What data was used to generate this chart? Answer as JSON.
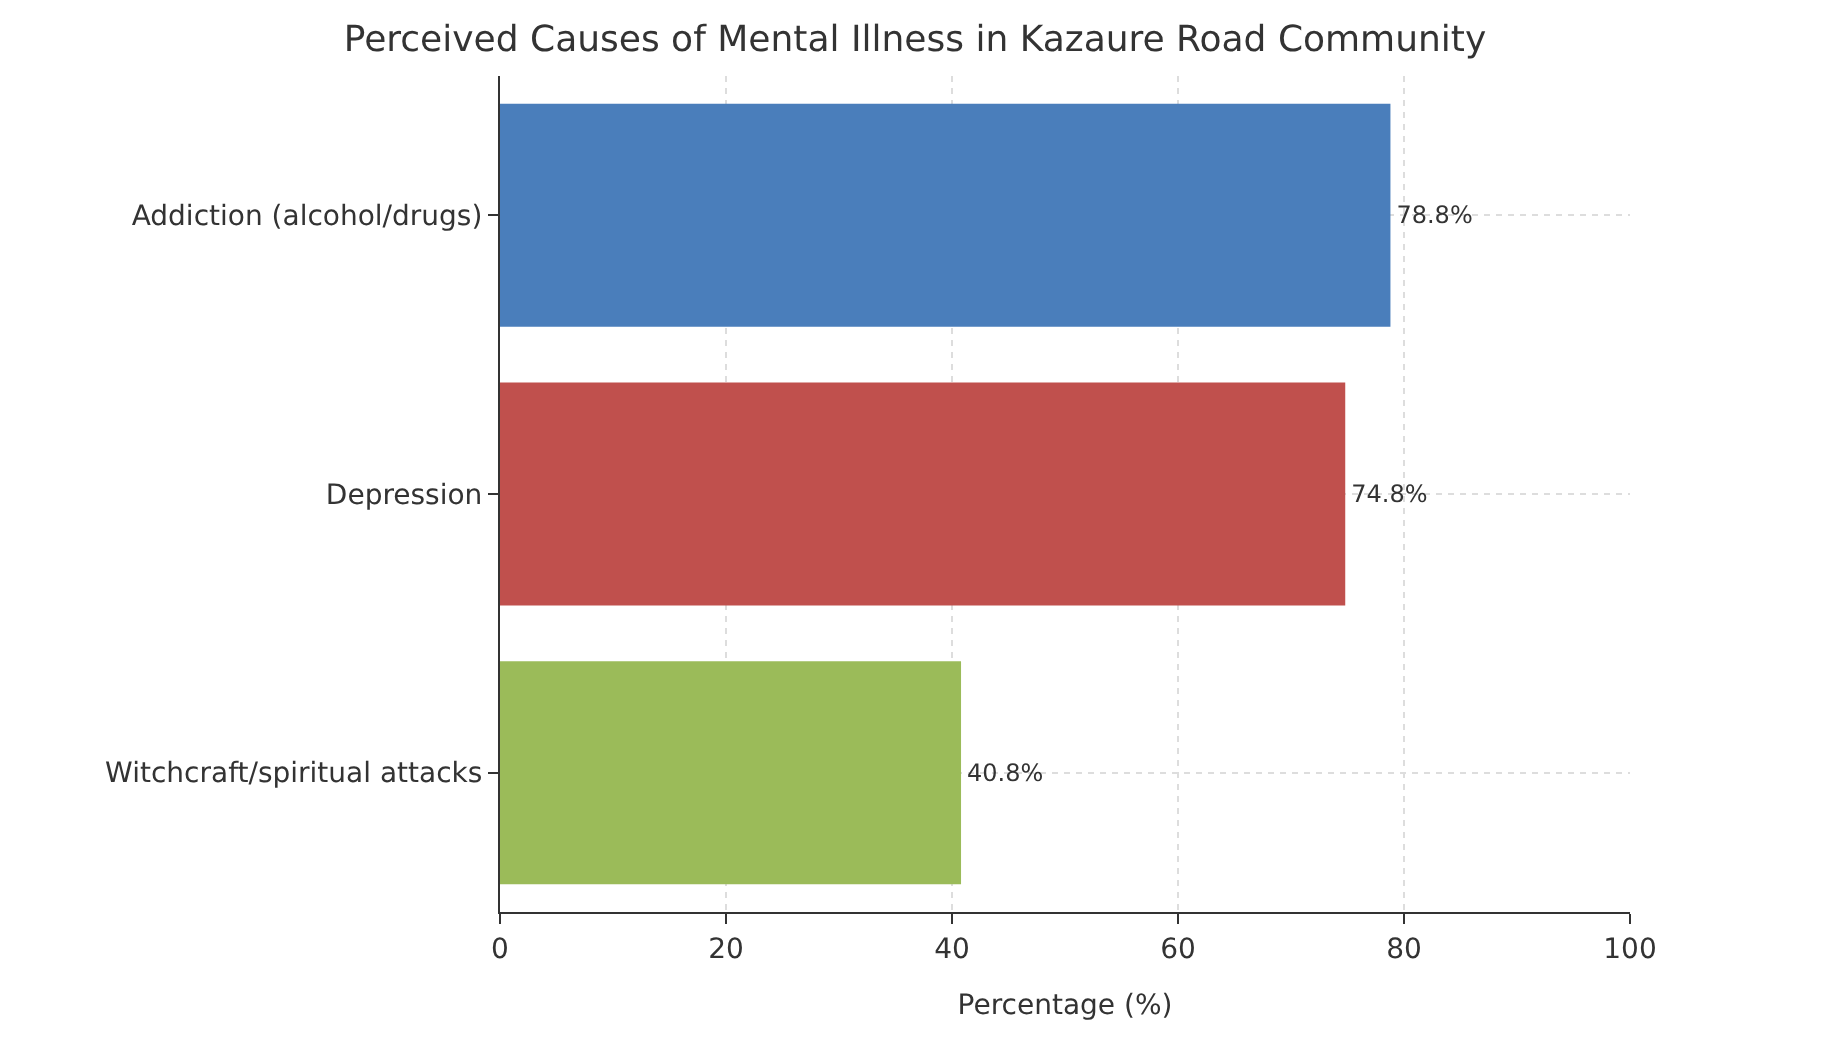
{
  "chart_data": {
    "type": "bar",
    "orientation": "horizontal",
    "title": "Perceived Causes of Mental Illness in Kazaure Road Community",
    "xlabel": "Percentage (%)",
    "categories": [
      "Addiction (alcohol/drugs)",
      "Depression",
      "Witchcraft/spiritual attacks"
    ],
    "values": [
      78.8,
      74.8,
      40.8
    ],
    "colors": [
      "#4a7ebb",
      "#c0504d",
      "#9bbb59"
    ],
    "value_labels": [
      "78.8%",
      "74.8%",
      "40.8%"
    ],
    "xlim": [
      0,
      100
    ],
    "xticks": [
      0,
      20,
      40,
      60,
      80,
      100
    ],
    "grid": true
  }
}
